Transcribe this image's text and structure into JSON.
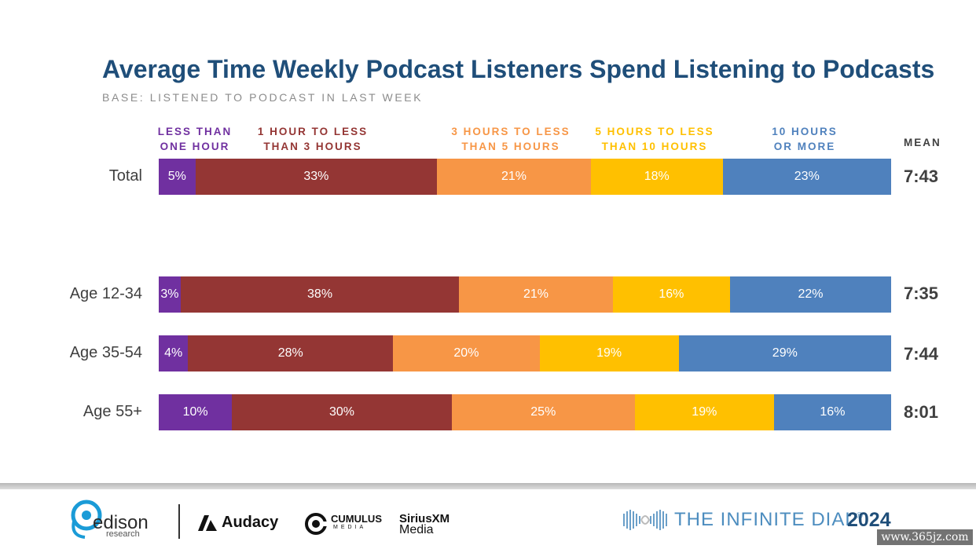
{
  "chart_data": {
    "type": "bar",
    "orientation": "horizontal",
    "stacked": true,
    "title": "Average Time Weekly Podcast Listeners Spend Listening to Podcasts",
    "subtitle": "BASE: LISTENED TO PODCAST IN LAST WEEK",
    "xlim": [
      0,
      100
    ],
    "grid": false,
    "legend_placement": "top",
    "mean_header": "MEAN",
    "categories": [
      "Total",
      "Age 12-34",
      "Age 35-54",
      "Age 55+"
    ],
    "series": [
      {
        "name": "LESS THAN ONE HOUR",
        "color": "#7030a0",
        "values": [
          5,
          3,
          4,
          10
        ],
        "labels": [
          "5%",
          "3%",
          "4%",
          "10%"
        ]
      },
      {
        "name": "1 HOUR TO LESS THAN 3 HOURS",
        "color": "#943634",
        "values": [
          33,
          38,
          28,
          30
        ],
        "labels": [
          "33%",
          "38%",
          "28%",
          "30%"
        ]
      },
      {
        "name": "3 HOURS TO LESS THAN 5 HOURS",
        "color": "#f79646",
        "values": [
          21,
          21,
          20,
          25
        ],
        "labels": [
          "21%",
          "21%",
          "20%",
          "25%"
        ]
      },
      {
        "name": "5 HOURS TO LESS THAN 10 HOURS",
        "color": "#ffc000",
        "values": [
          18,
          16,
          19,
          19
        ],
        "labels": [
          "18%",
          "16%",
          "19%",
          "19%"
        ]
      },
      {
        "name": "10 HOURS OR MORE",
        "color": "#4f81bd",
        "values": [
          23,
          22,
          29,
          16
        ],
        "labels": [
          "23%",
          "22%",
          "29%",
          "16%"
        ]
      }
    ],
    "means": [
      "7:43",
      "7:35",
      "7:44",
      "8:01"
    ]
  },
  "headers": {
    "h0_line1": "LESS THAN",
    "h0_line2": "ONE HOUR",
    "h1_line1": "1 HOUR TO LESS",
    "h1_line2": "THAN 3 HOURS",
    "h2_line1": "3 HOURS TO LESS",
    "h2_line2": "THAN 5 HOURS",
    "h3_line1": "5 HOURS TO LESS",
    "h3_line2": "THAN 10 HOURS",
    "h4_line1": "10 HOURS",
    "h4_line2": "OR MORE"
  },
  "footer": {
    "edison_word": "edison",
    "edison_sub": "research",
    "audacy": "Audacy",
    "cumulus": "CUMULUS",
    "cumulus_sub": "MEDIA",
    "siriusxm": "SiriusXM",
    "siriusxm_sub": "Media",
    "dial_text": "THE INFINITE DIAL",
    "dial_reg": "®",
    "dial_year": "2024",
    "watermark": "www.365jz.com",
    "brand_color": "#1f4e79"
  }
}
